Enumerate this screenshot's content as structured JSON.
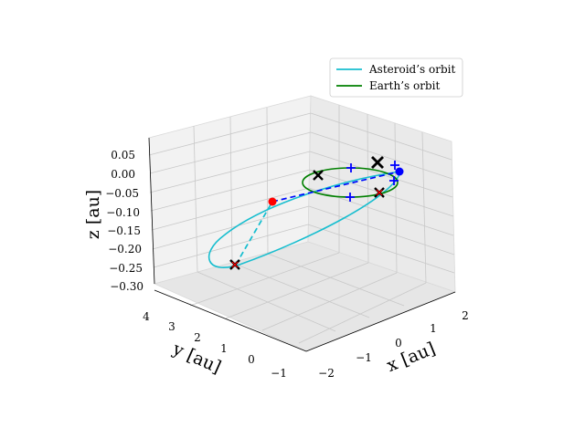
{
  "chart_data": {
    "type": "line",
    "projection": "3d",
    "title": "",
    "xlabel": "x [au]",
    "ylabel": "y [au]",
    "zlabel": "z [au]",
    "xticks": [
      "−2",
      "−1",
      "0",
      "1",
      "2"
    ],
    "yticks": [
      "−1",
      "0",
      "1",
      "2",
      "3",
      "4"
    ],
    "zticks": [
      "−0.30",
      "−0.25",
      "−0.20",
      "−0.15",
      "−0.10",
      "−0.05",
      "0.00",
      "0.05"
    ],
    "xlim": [
      -2.3,
      2.3
    ],
    "ylim": [
      -1.3,
      4.2
    ],
    "zlim": [
      -0.32,
      0.08
    ],
    "grid": true,
    "legend_position": "top-right",
    "series": [
      {
        "name": "Asteroid’s orbit",
        "color": "#17becf",
        "style": "solid"
      },
      {
        "name": "Earth’s orbit",
        "color": "#008000",
        "style": "solid"
      }
    ],
    "asteroid_orbit": {
      "description_points": [
        {
          "x": 1.1,
          "y": -0.3,
          "z": 0.0
        },
        {
          "x": -1.4,
          "y": 3.3,
          "z": -0.28
        }
      ]
    },
    "markers": {
      "earth_positions_plus": [
        {
          "x": 0.0,
          "y": 1.0,
          "z": 0.0
        },
        {
          "x": 1.0,
          "y": 0.0,
          "z": 0.0
        },
        {
          "x": 0.0,
          "y": -1.0,
          "z": 0.0
        },
        {
          "x": -1.0,
          "y": 0.0,
          "z": 0.0
        }
      ],
      "blue_dot": {
        "x": 1.0,
        "y": -0.3,
        "z": 0.0
      },
      "red_dot": {
        "x": -0.6,
        "y": 1.8,
        "z": -0.1
      },
      "x_markers": 5
    }
  }
}
